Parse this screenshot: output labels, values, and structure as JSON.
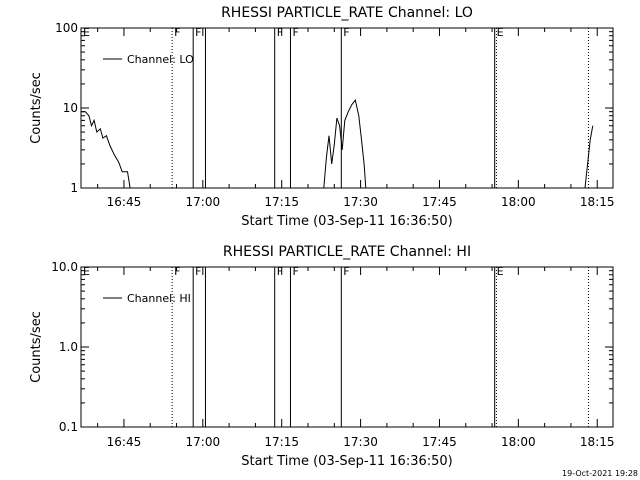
{
  "footer_date": "19-Oct-2021 19:28",
  "chart_data": [
    {
      "type": "line",
      "title": "RHESSI PARTICLE_RATE Channel: LO",
      "xlabel": "Start Time (03-Sep-11 16:36:50)",
      "ylabel": "Counts/sec",
      "yscale": "log",
      "xlim": [
        "16:36:50",
        "18:18:00"
      ],
      "ylim": [
        1,
        100
      ],
      "xticks": [
        "16:45",
        "17:00",
        "17:15",
        "17:30",
        "17:45",
        "18:00",
        "18:15"
      ],
      "yticks": [
        "1",
        "10",
        "100"
      ],
      "legend": {
        "label": "Channel: LO",
        "placement": "top-left"
      },
      "series": [
        {
          "name": "Channel: LO",
          "segments": [
            [
              [
                "16:36:50",
                9
              ],
              [
                "16:37:40",
                9
              ],
              [
                "16:38:20",
                8
              ],
              [
                "16:38:50",
                6
              ],
              [
                "16:39:20",
                7
              ],
              [
                "16:39:50",
                5
              ],
              [
                "16:40:30",
                5.5
              ],
              [
                "16:41:00",
                4.2
              ],
              [
                "16:41:40",
                4.5
              ],
              [
                "16:42:20",
                3.4
              ],
              [
                "16:43:10",
                2.6
              ],
              [
                "16:44:00",
                2.1
              ],
              [
                "16:44:40",
                1.6
              ],
              [
                "16:45:40",
                1.6
              ],
              [
                "16:46:10",
                1
              ]
            ],
            [
              [
                "17:23:00",
                1
              ],
              [
                "17:23:30",
                2.4
              ],
              [
                "17:24:00",
                4.5
              ],
              [
                "17:24:30",
                2
              ],
              [
                "17:25:00",
                3.5
              ],
              [
                "17:25:30",
                7.5
              ],
              [
                "17:26:00",
                6
              ],
              [
                "17:26:30",
                3
              ],
              [
                "17:27:00",
                7
              ],
              [
                "17:27:40",
                9
              ],
              [
                "17:28:20",
                11
              ],
              [
                "17:29:00",
                12.5
              ],
              [
                "17:29:40",
                8
              ],
              [
                "17:30:10",
                4
              ],
              [
                "17:30:40",
                2
              ],
              [
                "17:31:00",
                1
              ]
            ],
            [
              [
                "18:12:40",
                1
              ],
              [
                "18:13:10",
                2
              ],
              [
                "18:13:40",
                4
              ],
              [
                "18:14:10",
                6
              ]
            ]
          ]
        }
      ],
      "markers": [
        {
          "time": "16:54:10",
          "label": "F",
          "style": "dotted"
        },
        {
          "time": "16:58:10",
          "label": "F",
          "style": "solid"
        },
        {
          "time": "17:00:30",
          "label": "",
          "style": "solid"
        },
        {
          "time": "17:13:40",
          "label": "F",
          "style": "solid"
        },
        {
          "time": "17:16:40",
          "label": "F",
          "style": "solid"
        },
        {
          "time": "17:26:20",
          "label": "F",
          "style": "solid"
        },
        {
          "time": "17:55:30",
          "label": "E",
          "style": "solid"
        },
        {
          "time": "17:55:50",
          "label": "",
          "style": "dotted"
        },
        {
          "time": "18:13:20",
          "label": "",
          "style": "dotted"
        }
      ],
      "edge_label": "E"
    },
    {
      "type": "line",
      "title": "RHESSI PARTICLE_RATE Channel: HI",
      "xlabel": "Start Time (03-Sep-11 16:36:50)",
      "ylabel": "Counts/sec",
      "yscale": "log",
      "xlim": [
        "16:36:50",
        "18:18:00"
      ],
      "ylim": [
        0.1,
        10
      ],
      "xticks": [
        "16:45",
        "17:00",
        "17:15",
        "17:30",
        "17:45",
        "18:00",
        "18:15"
      ],
      "yticks": [
        "0.1",
        "1.0",
        "10.0"
      ],
      "legend": {
        "label": "Channel: HI",
        "placement": "top-left"
      },
      "series": [
        {
          "name": "Channel: HI",
          "segments": []
        }
      ],
      "markers": [
        {
          "time": "16:54:10",
          "label": "F",
          "style": "dotted"
        },
        {
          "time": "16:58:10",
          "label": "F",
          "style": "solid"
        },
        {
          "time": "17:00:30",
          "label": "",
          "style": "solid"
        },
        {
          "time": "17:13:40",
          "label": "F",
          "style": "solid"
        },
        {
          "time": "17:16:40",
          "label": "F",
          "style": "solid"
        },
        {
          "time": "17:26:20",
          "label": "F",
          "style": "solid"
        },
        {
          "time": "17:55:30",
          "label": "E",
          "style": "solid"
        },
        {
          "time": "17:55:50",
          "label": "",
          "style": "dotted"
        },
        {
          "time": "18:13:20",
          "label": "",
          "style": "dotted"
        }
      ],
      "edge_label": "E"
    }
  ]
}
